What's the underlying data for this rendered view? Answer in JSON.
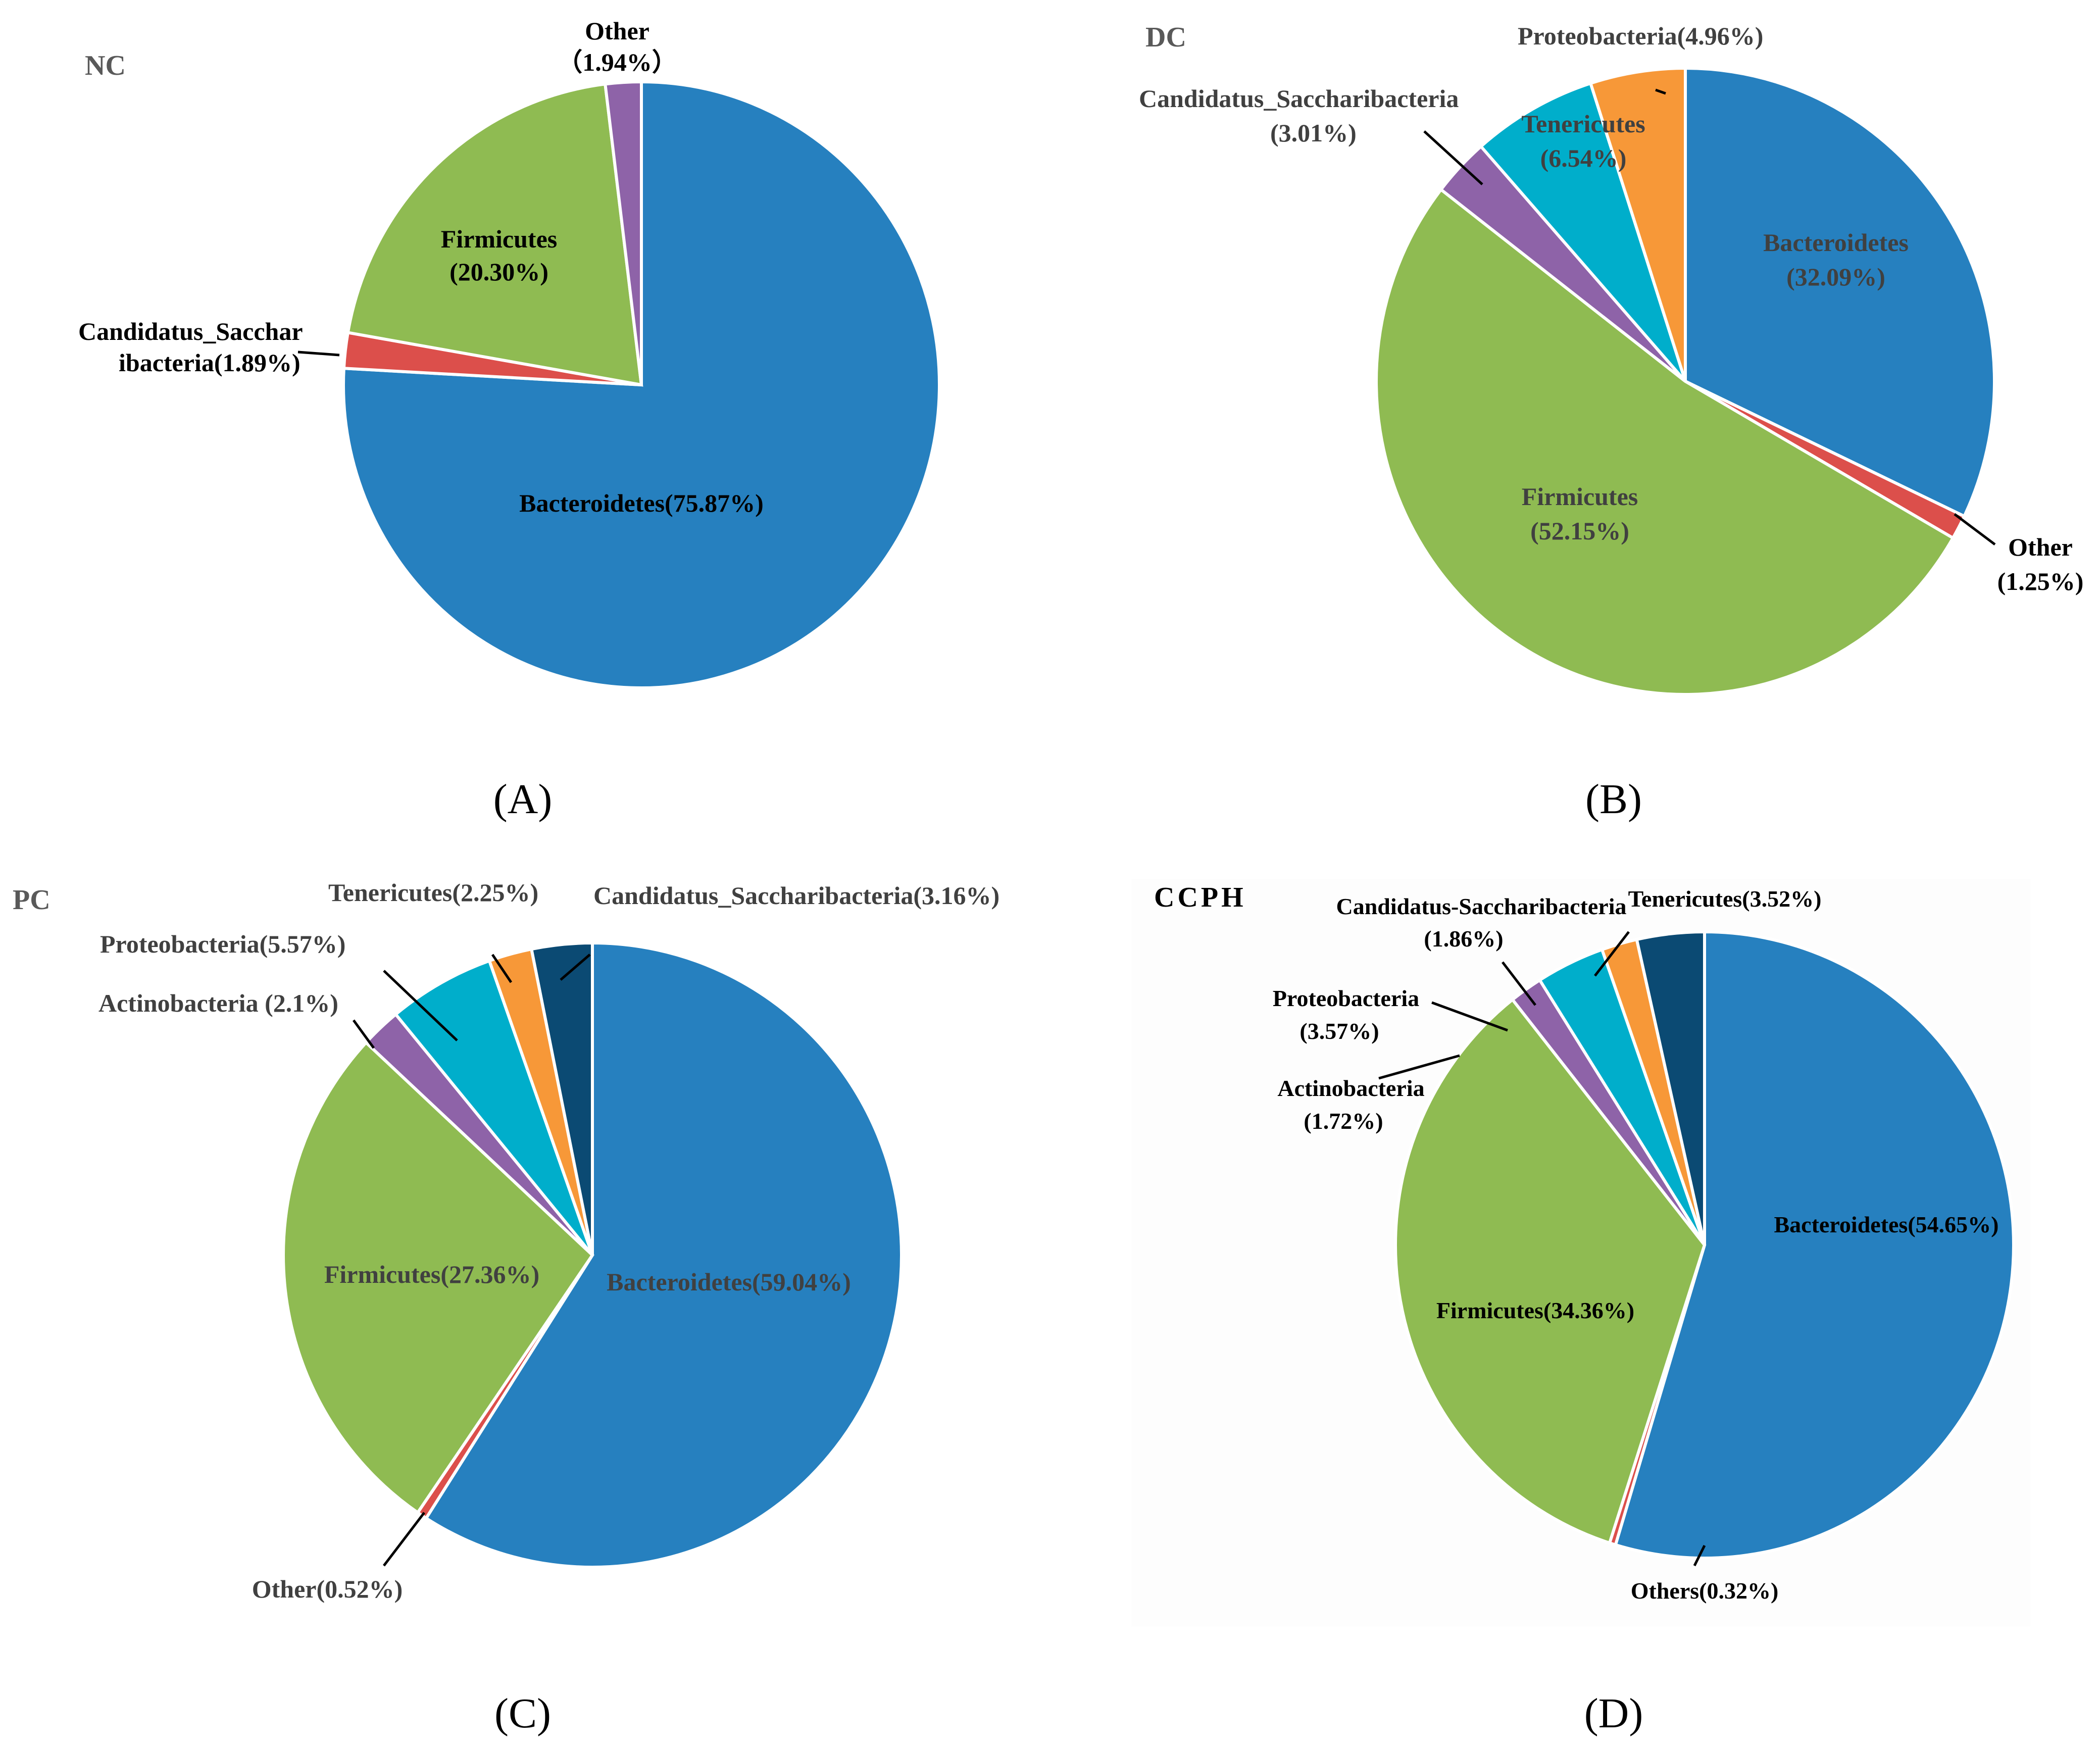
{
  "figure": {
    "description_labels": [
      "(A)",
      "(B)",
      "(C)",
      "(D)"
    ]
  },
  "colors": {
    "Bacteroidetes": "#2680BF",
    "Firmicutes": "#8FBB52",
    "Red": "#DC4F4B",
    "Purple": "#8E63A8",
    "Cyan": "#00AECB",
    "Orange": "#F79838",
    "Navy": "#0B4A73"
  },
  "chart_data": [
    {
      "type": "pie",
      "title": "NC",
      "panel": "(A)",
      "slices": [
        {
          "name": "Bacteroidetes",
          "value": 75.87,
          "color": "#2680BF",
          "label": [
            "Bacteroidetes(75.87%)"
          ]
        },
        {
          "name": "Candidatus_Saccharibacteria",
          "value": 1.89,
          "color": "#DC4F4B",
          "label": [
            "Candidatus_Sacchar",
            "ibacteria(1.89%)"
          ]
        },
        {
          "name": "Firmicutes",
          "value": 20.3,
          "color": "#8FBB52",
          "label": [
            "Firmicutes",
            "(20.30%)"
          ]
        },
        {
          "name": "Other",
          "value": 1.94,
          "color": "#8E63A8",
          "label": [
            "Other",
            "（1.94%）"
          ]
        }
      ]
    },
    {
      "type": "pie",
      "title": "DC",
      "panel": "(B)",
      "slices": [
        {
          "name": "Bacteroidetes",
          "value": 32.09,
          "color": "#2680BF",
          "label": [
            "Bacteroidetes",
            "(32.09%)"
          ]
        },
        {
          "name": "Other",
          "value": 1.25,
          "color": "#DC4F4B",
          "label": [
            "Other",
            "(1.25%)"
          ]
        },
        {
          "name": "Firmicutes",
          "value": 52.15,
          "color": "#8FBB52",
          "label": [
            "Firmicutes",
            "(52.15%)"
          ]
        },
        {
          "name": "Candidatus_Saccharibacteria",
          "value": 3.01,
          "color": "#8E63A8",
          "label": [
            "Candidatus_Saccharibacteria",
            "(3.01%)"
          ]
        },
        {
          "name": "Tenericutes",
          "value": 6.54,
          "color": "#00AECB",
          "label": [
            "Tenericutes",
            "(6.54%)"
          ]
        },
        {
          "name": "Proteobacteria",
          "value": 4.96,
          "color": "#F79838",
          "label": [
            "Proteobacteria(4.96%)"
          ]
        }
      ]
    },
    {
      "type": "pie",
      "title": "PC",
      "panel": "(C)",
      "slices": [
        {
          "name": "Bacteroidetes",
          "value": 59.04,
          "color": "#2680BF",
          "label": [
            "Bacteroidetes(59.04%)"
          ]
        },
        {
          "name": "Other",
          "value": 0.52,
          "color": "#DC4F4B",
          "label": [
            "Other(0.52%)"
          ]
        },
        {
          "name": "Firmicutes",
          "value": 27.36,
          "color": "#8FBB52",
          "label": [
            "Firmicutes(27.36%)"
          ]
        },
        {
          "name": "Actinobacteria",
          "value": 2.1,
          "color": "#8E63A8",
          "label": [
            "Actinobacteria (2.1%)"
          ]
        },
        {
          "name": "Proteobacteria",
          "value": 5.57,
          "color": "#00AECB",
          "label": [
            "Proteobacteria(5.57%)"
          ]
        },
        {
          "name": "Tenericutes",
          "value": 2.25,
          "color": "#F79838",
          "label": [
            "Tenericutes(2.25%)"
          ]
        },
        {
          "name": "Candidatus_Saccharibacteria",
          "value": 3.16,
          "color": "#0B4A73",
          "label": [
            "Candidatus_Saccharibacteria(3.16%)"
          ]
        }
      ]
    },
    {
      "type": "pie",
      "title": "CCPH",
      "panel": "(D)",
      "slices": [
        {
          "name": "Bacteroidetes",
          "value": 54.65,
          "color": "#2680BF",
          "label": [
            "Bacteroidetes(54.65%)"
          ]
        },
        {
          "name": "Others",
          "value": 0.32,
          "color": "#DC4F4B",
          "label": [
            "Others(0.32%)"
          ]
        },
        {
          "name": "Firmicutes",
          "value": 34.36,
          "color": "#8FBB52",
          "label": [
            "Firmicutes(34.36%)"
          ]
        },
        {
          "name": "Actinobacteria",
          "value": 1.72,
          "color": "#8E63A8",
          "label": [
            "Actinobacteria",
            "(1.72%)"
          ]
        },
        {
          "name": "Proteobacteria",
          "value": 3.57,
          "color": "#00AECB",
          "label": [
            "Proteobacteria",
            "(3.57%)"
          ]
        },
        {
          "name": "Candidatus-Saccharibacteria",
          "value": 1.86,
          "color": "#F79838",
          "label": [
            "Candidatus-Saccharibacteria",
            "(1.86%)"
          ]
        },
        {
          "name": "Tenericutes",
          "value": 3.52,
          "color": "#0B4A73",
          "label": [
            "Tenericutes(3.52%)"
          ]
        }
      ]
    }
  ]
}
